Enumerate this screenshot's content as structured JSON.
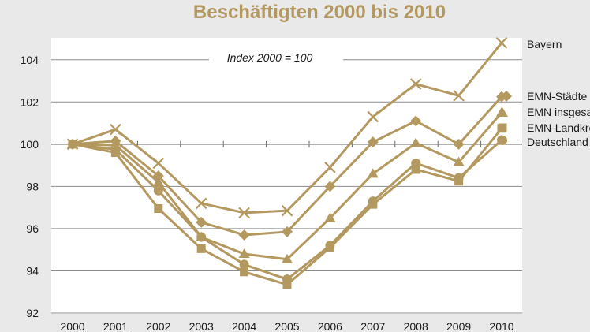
{
  "chart_data": {
    "type": "line",
    "title": "Beschäftigten 2000 bis 2010",
    "annotation": "Index 2000 = 100",
    "x": [
      "2000",
      "2001",
      "2002",
      "2003",
      "2004",
      "2005",
      "2006",
      "2007",
      "2008",
      "2009",
      "2010"
    ],
    "ylim": [
      92,
      105
    ],
    "yticks": [
      "92",
      "94",
      "96",
      "98",
      "100",
      "102",
      "104"
    ],
    "grid": true,
    "legend_position": "right",
    "line_color": "#b3995f",
    "series": [
      {
        "name": "Bayern",
        "marker": "x",
        "values": [
          100,
          100.7,
          99.1,
          97.2,
          96.75,
          96.85,
          98.9,
          101.3,
          102.85,
          102.3,
          104.8
        ]
      },
      {
        "name": "EMN-Städte",
        "marker": "diamond",
        "values": [
          100,
          100.15,
          98.5,
          96.3,
          95.7,
          95.85,
          98.0,
          100.1,
          101.1,
          100.0,
          102.25
        ]
      },
      {
        "name": "EMN insgesamt",
        "marker": "triangle",
        "values": [
          100,
          99.95,
          98.2,
          95.6,
          94.8,
          94.55,
          96.5,
          98.6,
          100.05,
          99.15,
          101.5
        ]
      },
      {
        "name": "EMN-Landkreise",
        "marker": "square",
        "values": [
          100,
          99.6,
          96.95,
          95.05,
          93.95,
          93.35,
          95.1,
          97.15,
          98.8,
          98.25,
          100.75
        ]
      },
      {
        "name": "Deutschland",
        "marker": "circle",
        "values": [
          100,
          99.75,
          97.8,
          95.6,
          94.3,
          93.6,
          95.2,
          97.3,
          99.1,
          98.4,
          100.2
        ]
      }
    ]
  }
}
